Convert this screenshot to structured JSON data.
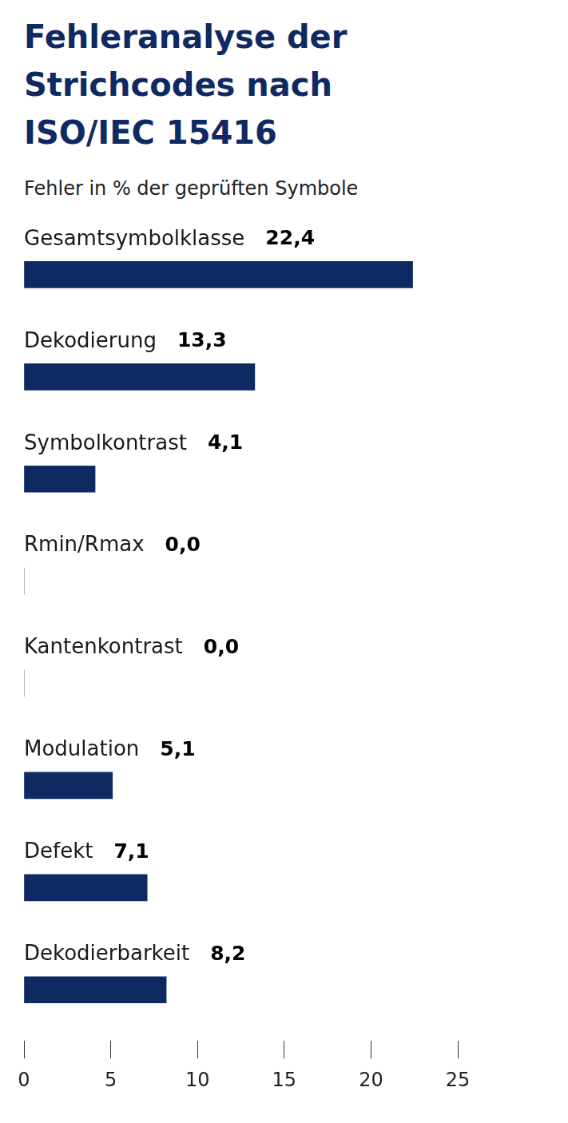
{
  "chart_data": {
    "type": "bar",
    "title": "Fehleranalyse der Strichcodes nach ISO/IEC 15416",
    "subtitle": "Fehler in % der geprüften Symbole",
    "categories": [
      "Gesamtsymbolklasse",
      "Dekodierung",
      "Symbolkontrast",
      "Rmin/Rmax",
      "Kantenkontrast",
      "Modulation",
      "Defekt",
      "Dekodierbarkeit"
    ],
    "values": [
      22.4,
      13.3,
      4.1,
      0.0,
      0.0,
      5.1,
      7.1,
      8.2
    ],
    "value_labels": [
      "22,4",
      "13,3",
      "4,1",
      "0,0",
      "0,0",
      "5,1",
      "7,1",
      "8,2"
    ],
    "color": "#0f2a63",
    "orientation": "horizontal",
    "xlim": [
      0,
      25
    ],
    "xticks": [
      0,
      5,
      10,
      15,
      20,
      25
    ],
    "grid": false,
    "data_labels": true
  }
}
